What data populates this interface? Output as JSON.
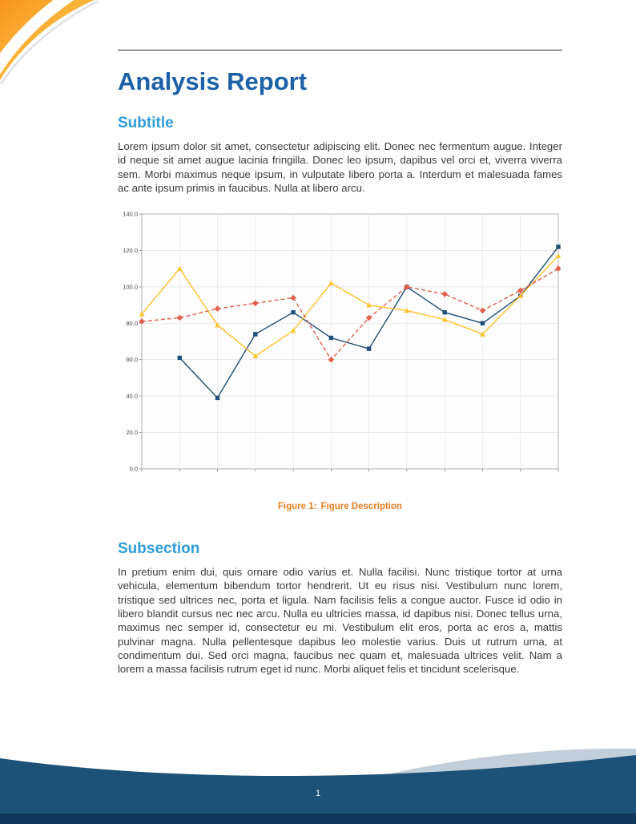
{
  "page": {
    "title": "Analysis Report",
    "page_number": "1"
  },
  "sections": [
    {
      "heading": "Subtitle",
      "body": "Lorem ipsum dolor sit amet, consectetur adipiscing elit. Donec nec fermentum augue. Integer id neque sit amet augue lacinia fringilla. Donec leo ipsum, dapibus vel orci et, viverra viverra sem. Morbi maximus neque ipsum, in vulputate libero porta a. Interdum et malesuada fames ac ante ipsum primis in faucibus. Nulla at libero arcu."
    },
    {
      "heading": "Subsection",
      "body": "In pretium enim dui, quis ornare odio varius et. Nulla facilisi. Nunc tristique tortor at urna vehicula, elementum bibendum tortor hendrerit. Ut eu risus nisi. Vestibulum nunc lorem, tristique sed ultrices nec, porta et ligula. Nam facilisis felis a congue auctor. Fusce id odio in libero blandit cursus nec nec arcu. Nulla eu ultricies massa, id dapibus nisi. Donec tellus urna, maximus nec semper id, consectetur eu mi. Vestibulum elit eros, porta ac eros a, mattis pulvinar magna. Nulla pellentesque dapibus leo molestie varius. Duis ut rutrum urna, at condimentum dui. Sed orci magna, faucibus nec quam et, malesuada ultrices velit. Nam a lorem a massa facilisis rutrum eget id nunc. Morbi aliquet felis et tincidunt scelerisque."
    }
  ],
  "figure": {
    "caption_label": "Figure 1:",
    "caption_text": "Figure Description"
  },
  "colors": {
    "title": "#1c60a8",
    "heading": "#2f9ddb",
    "caption": "#e67e22",
    "footer_dark": "#1c5178",
    "footer_darker": "#12395c",
    "footer_light": "#c2ced9",
    "corner_orange": "#f7941d",
    "corner_yellow": "#ffd95e"
  },
  "chart_data": {
    "type": "line",
    "x": [
      1,
      2,
      3,
      4,
      5,
      6,
      7,
      8,
      9,
      10,
      11,
      12
    ],
    "series": [
      {
        "name": "series-blue",
        "color": "#1f4e79",
        "marker": "square",
        "dash": false,
        "values": [
          null,
          61,
          39,
          74,
          86,
          72,
          66,
          100,
          86,
          80,
          95,
          122
        ]
      },
      {
        "name": "series-yellow",
        "color": "#fdc22e",
        "marker": "triangle",
        "dash": false,
        "values": [
          85,
          110,
          79,
          62,
          76,
          102,
          90,
          87,
          82,
          74,
          95,
          117
        ]
      },
      {
        "name": "series-red",
        "color": "#e2614d",
        "marker": "diamond",
        "dash": true,
        "values": [
          81,
          83,
          88,
          91,
          94,
          60,
          83,
          100,
          96,
          87,
          98,
          110
        ]
      }
    ],
    "title": "",
    "xlabel": "",
    "ylabel": "",
    "ylim": [
      0,
      140
    ],
    "yticks": [
      "0.0",
      "20.0",
      "40.0",
      "60.0",
      "80.0",
      "100.0",
      "120.0",
      "140.0"
    ],
    "grid": true,
    "legend": "none"
  }
}
